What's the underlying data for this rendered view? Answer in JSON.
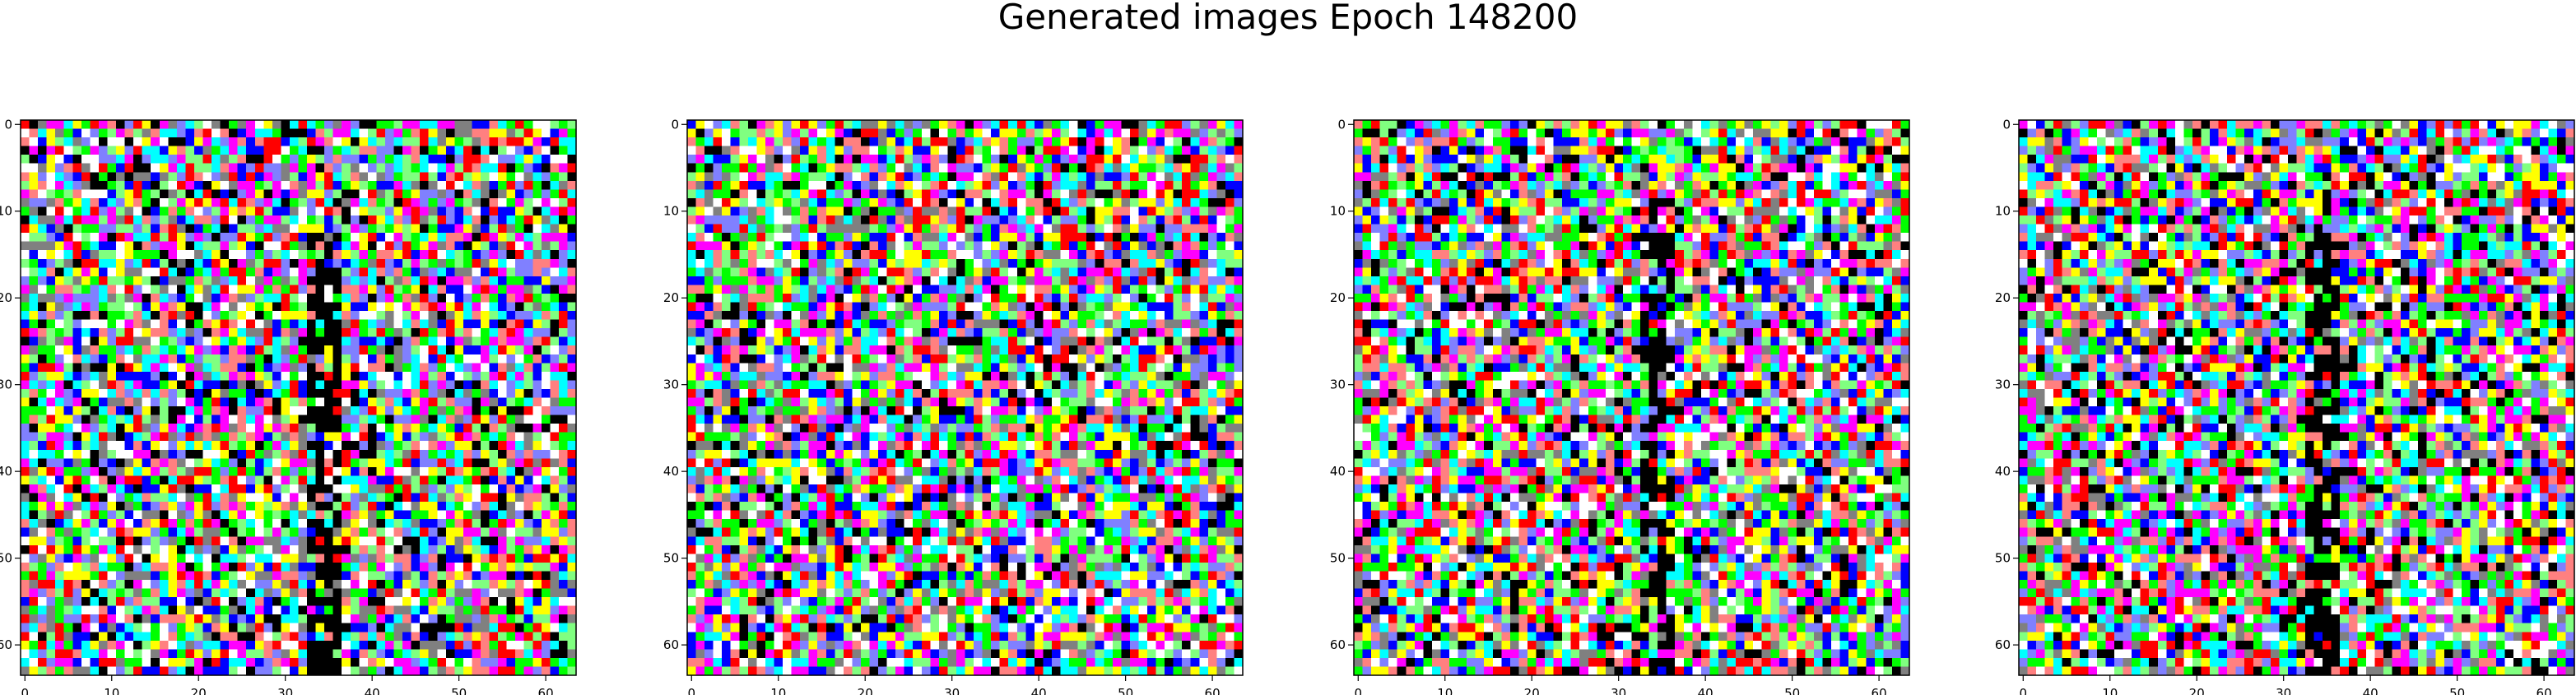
{
  "figure": {
    "suptitle": "Generated images Epoch 148200"
  },
  "chart_data": [
    {
      "type": "heatmap",
      "description_source": "imshow of a 64x64 RGB generated image",
      "xlim": [
        0,
        63
      ],
      "ylim": [
        63,
        0
      ],
      "xticks": [
        0,
        10,
        20,
        30,
        40,
        50,
        60
      ],
      "yticks": [
        0,
        10,
        20,
        30,
        40,
        50,
        60
      ],
      "palette": [
        "#ff0000",
        "#00ff00",
        "#0000ff",
        "#ffff00",
        "#ff00ff",
        "#00ffff",
        "#ffffff",
        "#000000",
        "#808080",
        "#ff8080",
        "#80ff80",
        "#8080ff"
      ],
      "seed": 148201
    },
    {
      "type": "heatmap",
      "xlim": [
        0,
        63
      ],
      "ylim": [
        63,
        0
      ],
      "xticks": [
        0,
        10,
        20,
        30,
        40,
        50,
        60
      ],
      "yticks": [
        0,
        10,
        20,
        30,
        40,
        50,
        60
      ],
      "palette": [
        "#ff0000",
        "#00ff00",
        "#0000ff",
        "#ffff00",
        "#ff00ff",
        "#00ffff",
        "#ffffff",
        "#000000",
        "#808080",
        "#ff8080",
        "#80ff80",
        "#8080ff"
      ],
      "seed": 907331
    },
    {
      "type": "heatmap",
      "xlim": [
        0,
        63
      ],
      "ylim": [
        63,
        0
      ],
      "xticks": [
        0,
        10,
        20,
        30,
        40,
        50,
        60
      ],
      "yticks": [
        0,
        10,
        20,
        30,
        40,
        50,
        60
      ],
      "palette": [
        "#ff0000",
        "#00ff00",
        "#0000ff",
        "#ffff00",
        "#ff00ff",
        "#00ffff",
        "#ffffff",
        "#000000",
        "#808080",
        "#ff8080",
        "#80ff80",
        "#8080ff"
      ],
      "seed": 148203
    },
    {
      "type": "heatmap",
      "xlim": [
        0,
        63
      ],
      "ylim": [
        63,
        0
      ],
      "xticks": [
        0,
        10,
        20,
        30,
        40,
        50,
        60
      ],
      "yticks": [
        0,
        10,
        20,
        30,
        40,
        50,
        60
      ],
      "palette": [
        "#ff0000",
        "#00ff00",
        "#0000ff",
        "#ffff00",
        "#ff00ff",
        "#00ffff",
        "#ffffff",
        "#000000",
        "#808080",
        "#ff8080",
        "#80ff80",
        "#8080ff"
      ],
      "seed": 148204
    }
  ]
}
